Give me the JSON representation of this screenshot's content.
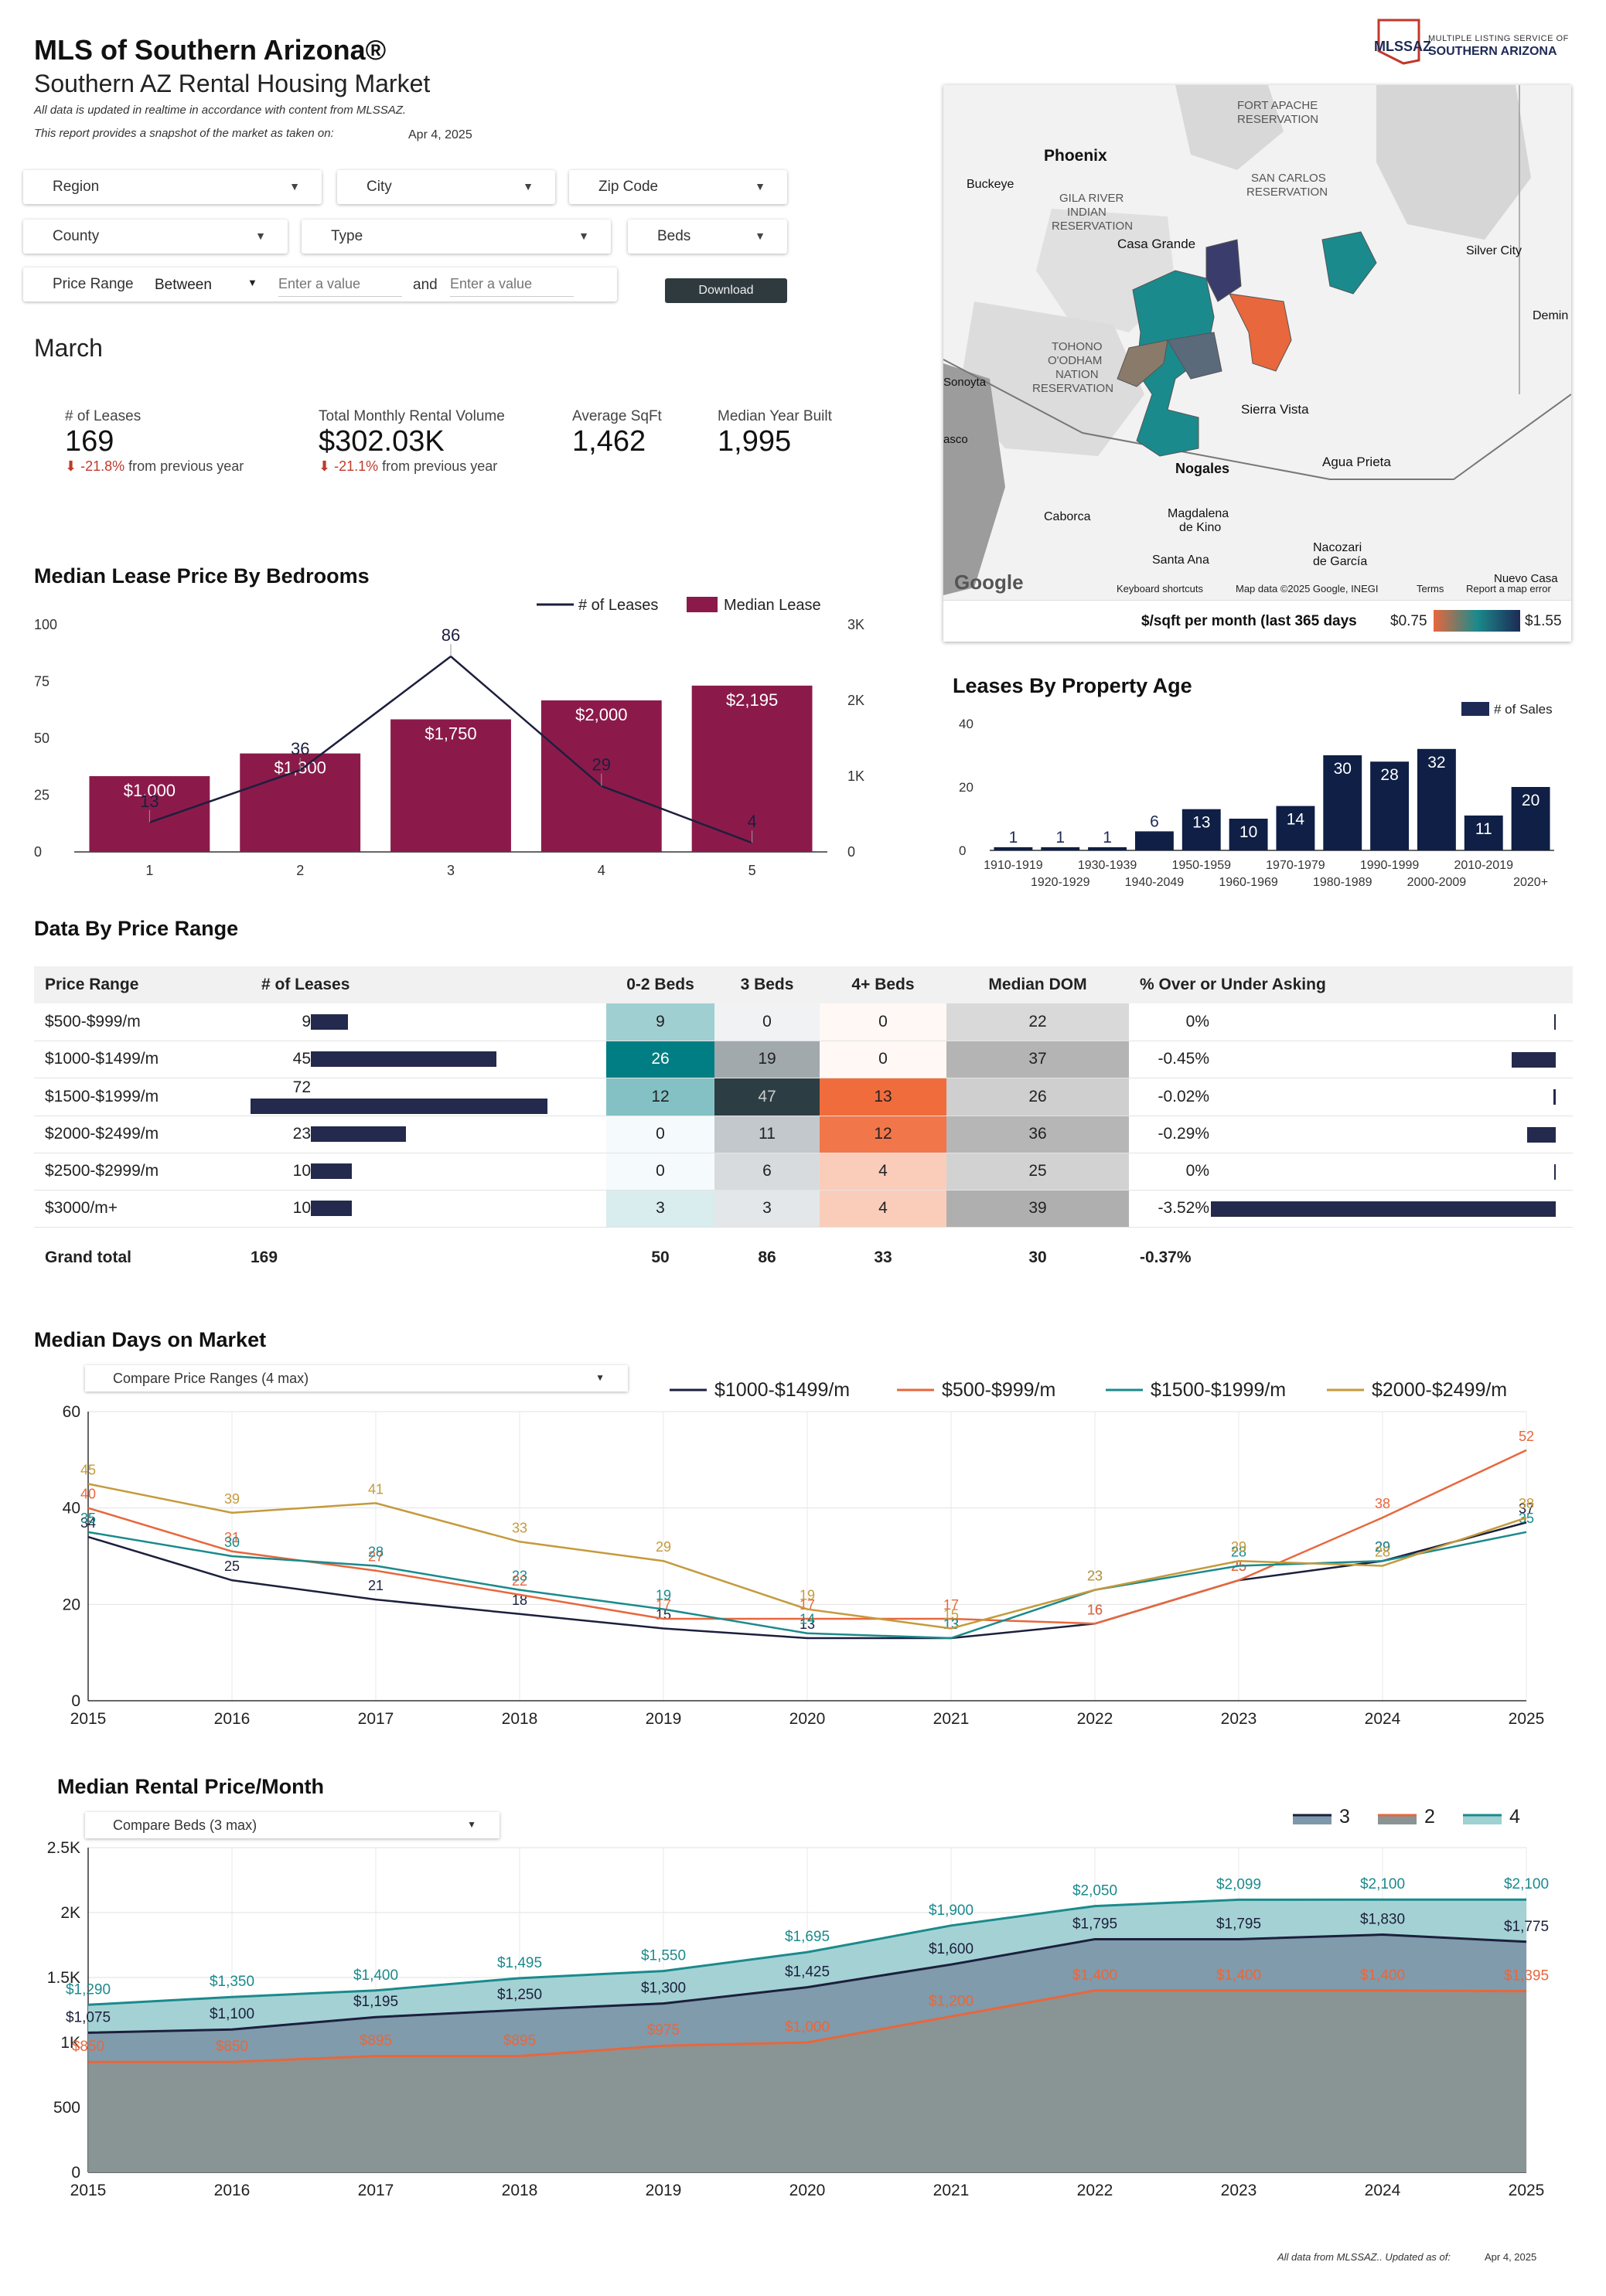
{
  "header": {
    "title": "MLS of Southern Arizona®",
    "subtitle": "Southern AZ Rental Housing Market",
    "note1": "All data is updated in realtime in accordance with content from MLSSAZ.",
    "note2": "This report provides a snapshot of the market as taken on:",
    "snapshot_date": "Apr 4, 2025",
    "logo_short": "MLSSAZ",
    "logo_line1": "MULTIPLE LISTING SERVICE OF",
    "logo_line2": "SOUTHERN ARIZONA"
  },
  "filters": {
    "region": "Region",
    "city": "City",
    "zip": "Zip Code",
    "county": "County",
    "type": "Type",
    "beds": "Beds",
    "price_range_label": "Price Range",
    "price_mode": "Between",
    "min_placeholder": "Enter a value",
    "and_label": "and",
    "max_placeholder": "Enter a value",
    "download": "Download"
  },
  "period": "March",
  "kpis": [
    {
      "label": "# of Leases",
      "value": "169",
      "change": "-21.8%",
      "change_text": "from previous year"
    },
    {
      "label": "Total Monthly Rental Volume",
      "value": "$302.03K",
      "change": "-21.1%",
      "change_text": "from previous year"
    },
    {
      "label": "Average SqFt",
      "value": "1,462"
    },
    {
      "label": "Median Year Built",
      "value": "1,995"
    }
  ],
  "map": {
    "labels": [
      "Phoenix",
      "Buckeye",
      "GILA RIVER",
      "INDIAN",
      "RESERVATION",
      "Casa Grande",
      "TOHONO",
      "O'ODHAM",
      "NATION",
      "RESERVATION",
      "Sierra Vista",
      "Nogales",
      "Agua Prieta",
      "Caborca",
      "Magdalena",
      "de Kino",
      "Santa Ana",
      "Nacozari",
      "de García",
      "Silver City",
      "Demin",
      "FORT APACHE",
      "RESERVATION",
      "SAN CARLOS",
      "RESERVATION",
      "Sonoyta",
      "asco",
      "Nuevo Casa"
    ],
    "google": "Google",
    "footer_links": [
      "Keyboard shortcuts",
      "Map data ©2025 Google, INEGI",
      "Terms",
      "Report a map error"
    ],
    "legend_title": "$/sqft per month (last 365 days",
    "legend_min": "$0.75",
    "legend_max": "$1.55",
    "colors": {
      "low": "#e8673c",
      "mid": "#1b8a8c",
      "high": "#1d2a55"
    }
  },
  "median_lease_chart": {
    "title": "Median Lease Price By Bedrooms",
    "legend": [
      "# of Leases",
      "Median Lease"
    ],
    "left_ticks": [
      "100",
      "75",
      "50",
      "25",
      "0"
    ],
    "right_ticks": [
      "3K",
      "2K",
      "1K",
      "0"
    ],
    "categories": [
      "1",
      "2",
      "3",
      "4",
      "5"
    ],
    "median_lease_labels": [
      "$1,000",
      "$1,300",
      "$1,750",
      "$2,000",
      "$2,195"
    ],
    "lease_count_labels": [
      "13",
      "36",
      "86",
      "29",
      "4"
    ]
  },
  "property_age_chart": {
    "title": "Leases By Property Age",
    "legend": "# of Sales",
    "ticks": [
      "40",
      "20",
      "0"
    ],
    "categories_top": [
      "1910-1919",
      "1930-1939",
      "1950-1959",
      "1970-1979",
      "1990-1999",
      "2010-2019"
    ],
    "categories_bottom": [
      "1920-1929",
      "1940-2049",
      "1960-1969",
      "1980-1989",
      "2000-2009",
      "2020+"
    ],
    "value_labels": [
      "1",
      "1",
      "1",
      "6",
      "13",
      "10",
      "14",
      "30",
      "28",
      "32",
      "11",
      "20"
    ]
  },
  "price_range_table": {
    "title": "Data By Price Range",
    "headers": [
      "Price Range",
      "# of Leases",
      "0-2 Beds",
      "3 Beds",
      "4+ Beds",
      "Median DOM",
      "% Over or Under Asking"
    ],
    "rows": [
      {
        "range": "$500-$999/m",
        "leases": "9",
        "b02": "9",
        "b3": "0",
        "b4": "0",
        "dom": "22",
        "pct": "0%"
      },
      {
        "range": "$1000-$1499/m",
        "leases": "45",
        "b02": "26",
        "b3": "19",
        "b4": "0",
        "dom": "37",
        "pct": "-0.45%"
      },
      {
        "range": "$1500-$1999/m",
        "leases": "72",
        "b02": "12",
        "b3": "47",
        "b4": "13",
        "dom": "26",
        "pct": "-0.02%"
      },
      {
        "range": "$2000-$2499/m",
        "leases": "23",
        "b02": "0",
        "b3": "11",
        "b4": "12",
        "dom": "36",
        "pct": "-0.29%"
      },
      {
        "range": "$2500-$2999/m",
        "leases": "10",
        "b02": "0",
        "b3": "6",
        "b4": "4",
        "dom": "25",
        "pct": "0%"
      },
      {
        "range": "$3000/m+",
        "leases": "10",
        "b02": "3",
        "b3": "3",
        "b4": "4",
        "dom": "39",
        "pct": "-3.52%"
      }
    ],
    "total": {
      "label": "Grand total",
      "leases": "169",
      "b02": "50",
      "b3": "86",
      "b4": "33",
      "dom": "30",
      "pct": "-0.37%"
    }
  },
  "dom_chart": {
    "title": "Median Days on Market",
    "compare_label": "Compare Price Ranges (4 max)",
    "ticks": [
      "60",
      "40",
      "20",
      "0"
    ]
  },
  "rent_chart": {
    "title": "Median Rental Price/Month",
    "compare_label": "Compare Beds (3 max)",
    "ticks": [
      "2.5K",
      "2K",
      "1.5K",
      "1K",
      "500",
      "0"
    ]
  },
  "chart_data": [
    {
      "type": "bar",
      "title": "Median Lease Price By Bedrooms",
      "categories": [
        "1",
        "2",
        "3",
        "4",
        "5"
      ],
      "series": [
        {
          "name": "Median Lease",
          "axis": "right",
          "values": [
            1000,
            1300,
            1750,
            2000,
            2195
          ]
        },
        {
          "name": "# of Leases",
          "axis": "left",
          "kind": "line",
          "values": [
            13,
            36,
            86,
            29,
            4
          ]
        }
      ],
      "ylim_left": [
        0,
        100
      ],
      "ylim_right": [
        0,
        3000
      ]
    },
    {
      "type": "bar",
      "title": "Leases By Property Age",
      "categories": [
        "1910-1919",
        "1920-1929",
        "1930-1939",
        "1940-2049",
        "1950-1959",
        "1960-1969",
        "1970-1979",
        "1980-1989",
        "1990-1999",
        "2000-2009",
        "2010-2019",
        "2020+"
      ],
      "series": [
        {
          "name": "# of Sales",
          "values": [
            1,
            1,
            1,
            6,
            13,
            10,
            14,
            30,
            28,
            32,
            11,
            20
          ]
        }
      ],
      "ylim": [
        0,
        40
      ]
    },
    {
      "type": "line",
      "title": "Median Days on Market",
      "x": [
        "2015",
        "2016",
        "2017",
        "2018",
        "2019",
        "2020",
        "2021",
        "2022",
        "2023",
        "2024",
        "2025"
      ],
      "series": [
        {
          "name": "$1000-$1499/m",
          "color": "#1c1f3d",
          "values": [
            34,
            25,
            21,
            18,
            15,
            13,
            13,
            16,
            25,
            29,
            37
          ],
          "labels": [
            "34",
            "25",
            "21",
            "18",
            "15",
            "13",
            "13",
            "16",
            "25",
            "29",
            "37"
          ]
        },
        {
          "name": "$500-$999/m",
          "color": "#e8673c",
          "values": [
            40,
            31,
            27,
            22,
            17,
            17,
            17,
            16,
            25,
            38,
            52
          ],
          "labels": [
            "40",
            "31",
            "27",
            "22",
            "17",
            "17",
            "17",
            "16",
            "25",
            "38",
            "52"
          ]
        },
        {
          "name": "$1500-$1999/m",
          "color": "#1b8a8c",
          "values": [
            35,
            30,
            28,
            23,
            19,
            14,
            13,
            23,
            28,
            29,
            35
          ],
          "labels": [
            "35",
            "30",
            "28",
            "23",
            "19",
            "14",
            "13",
            "23",
            "28",
            "29",
            "35"
          ]
        },
        {
          "name": "$2000-$2499/m",
          "color": "#c49a3c",
          "values": [
            45,
            39,
            41,
            33,
            29,
            19,
            15,
            23,
            29,
            28,
            38
          ],
          "labels": [
            "45",
            "39",
            "41",
            "33",
            "29",
            "19",
            "15",
            "23",
            "29",
            "28",
            "38"
          ]
        }
      ],
      "ylim": [
        0,
        60
      ]
    },
    {
      "type": "area",
      "title": "Median Rental Price/Month",
      "x": [
        "2015",
        "2016",
        "2017",
        "2018",
        "2019",
        "2020",
        "2021",
        "2022",
        "2023",
        "2024",
        "2025"
      ],
      "series": [
        {
          "name": "4",
          "color": "#1b8a8c",
          "values": [
            1290,
            1350,
            1400,
            1495,
            1550,
            1695,
            1900,
            2050,
            2099,
            2100,
            2100
          ],
          "labels": [
            "$1,290",
            "$1,350",
            "$1,400",
            "$1,495",
            "$1,550",
            "$1,695",
            "$1,900",
            "$2,050",
            "$2,099",
            "$2,100",
            "$2,100"
          ]
        },
        {
          "name": "3",
          "color": "#1c1f3d",
          "values": [
            1075,
            1100,
            1195,
            1250,
            1300,
            1425,
            1600,
            1795,
            1795,
            1830,
            1775
          ],
          "labels": [
            "$1,075",
            "$1,100",
            "$1,195",
            "$1,250",
            "$1,300",
            "$1,425",
            "$1,600",
            "$1,795",
            "$1,795",
            "$1,830",
            "$1,775"
          ]
        },
        {
          "name": "2",
          "color": "#e8673c",
          "values": [
            850,
            850,
            895,
            895,
            975,
            1000,
            1200,
            1400,
            1400,
            1400,
            1395
          ],
          "labels": [
            "$850",
            "$850",
            "$895",
            "$895",
            "$975",
            "$1,000",
            "$1,200",
            "$1,400",
            "$1,400",
            "$1,400",
            "$1,395"
          ]
        }
      ],
      "legend_order": [
        "3",
        "2",
        "4"
      ],
      "ylim": [
        0,
        2500
      ]
    }
  ],
  "footer": {
    "text": "All data from MLSSAZ.. Updated as of:",
    "date": "Apr 4, 2025"
  }
}
